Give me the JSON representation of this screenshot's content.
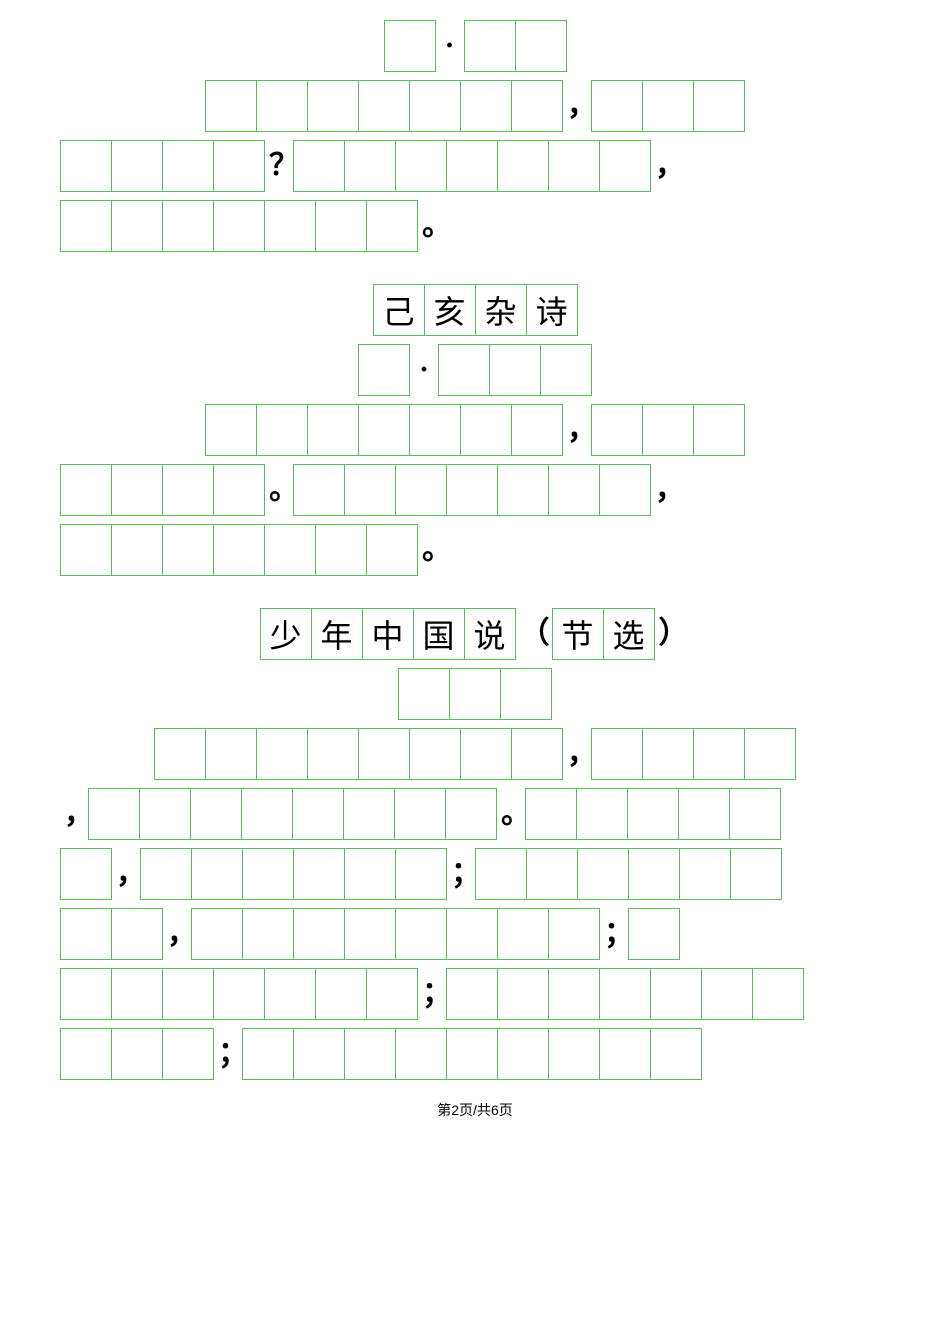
{
  "cellBorderColor": "#5cb85c",
  "cellSize": 52,
  "section1": {
    "rows": [
      {
        "align": "center",
        "segments": [
          {
            "type": "group",
            "cells": [
              ""
            ]
          },
          {
            "type": "punct",
            "text": "·"
          },
          {
            "type": "group",
            "cells": [
              "",
              ""
            ]
          }
        ]
      },
      {
        "align": "center",
        "segments": [
          {
            "type": "group",
            "cells": [
              "",
              "",
              "",
              "",
              "",
              "",
              ""
            ]
          },
          {
            "type": "punct",
            "text": "，"
          },
          {
            "type": "group",
            "cells": [
              "",
              "",
              ""
            ]
          }
        ]
      },
      {
        "align": "left",
        "segments": [
          {
            "type": "group",
            "cells": [
              "",
              "",
              "",
              ""
            ]
          },
          {
            "type": "punct",
            "text": "？"
          },
          {
            "type": "group",
            "cells": [
              "",
              "",
              "",
              "",
              "",
              "",
              ""
            ]
          },
          {
            "type": "punct",
            "text": "，"
          }
        ]
      },
      {
        "align": "left",
        "segments": [
          {
            "type": "group",
            "cells": [
              "",
              "",
              "",
              "",
              "",
              "",
              ""
            ]
          },
          {
            "type": "punct",
            "text": "。"
          }
        ]
      }
    ]
  },
  "section2": {
    "title": [
      "己",
      "亥",
      "杂",
      "诗"
    ],
    "rows": [
      {
        "align": "center",
        "segments": [
          {
            "type": "group",
            "cells": [
              ""
            ]
          },
          {
            "type": "punct",
            "text": "·"
          },
          {
            "type": "group",
            "cells": [
              "",
              "",
              ""
            ]
          }
        ]
      },
      {
        "align": "center",
        "segments": [
          {
            "type": "group",
            "cells": [
              "",
              "",
              "",
              "",
              "",
              "",
              ""
            ]
          },
          {
            "type": "punct",
            "text": "，"
          },
          {
            "type": "group",
            "cells": [
              "",
              "",
              ""
            ]
          }
        ]
      },
      {
        "align": "left",
        "segments": [
          {
            "type": "group",
            "cells": [
              "",
              "",
              "",
              ""
            ]
          },
          {
            "type": "punct",
            "text": "。"
          },
          {
            "type": "group",
            "cells": [
              "",
              "",
              "",
              "",
              "",
              "",
              ""
            ]
          },
          {
            "type": "punct",
            "text": "，"
          }
        ]
      },
      {
        "align": "left",
        "segments": [
          {
            "type": "group",
            "cells": [
              "",
              "",
              "",
              "",
              "",
              "",
              ""
            ]
          },
          {
            "type": "punct",
            "text": "。"
          }
        ]
      }
    ]
  },
  "section3": {
    "title": {
      "main": [
        "少",
        "年",
        "中",
        "国",
        "说"
      ],
      "lparen": "（",
      "sub": [
        "节",
        "选"
      ],
      "rparen": "）"
    },
    "rows": [
      {
        "align": "center",
        "segments": [
          {
            "type": "group",
            "cells": [
              "",
              "",
              ""
            ]
          }
        ]
      },
      {
        "align": "center",
        "segments": [
          {
            "type": "group",
            "cells": [
              "",
              "",
              "",
              "",
              "",
              "",
              "",
              ""
            ]
          },
          {
            "type": "punct",
            "text": "，"
          },
          {
            "type": "group",
            "cells": [
              "",
              "",
              "",
              ""
            ]
          }
        ]
      },
      {
        "align": "left",
        "segments": [
          {
            "type": "punct",
            "text": "，"
          },
          {
            "type": "group",
            "cells": [
              "",
              "",
              "",
              "",
              "",
              "",
              "",
              ""
            ]
          },
          {
            "type": "punct",
            "text": "。"
          },
          {
            "type": "group",
            "cells": [
              "",
              "",
              "",
              "",
              ""
            ]
          }
        ]
      },
      {
        "align": "left",
        "segments": [
          {
            "type": "group",
            "cells": [
              ""
            ]
          },
          {
            "type": "punct",
            "text": "，"
          },
          {
            "type": "group",
            "cells": [
              "",
              "",
              "",
              "",
              "",
              ""
            ]
          },
          {
            "type": "punct",
            "text": "；"
          },
          {
            "type": "group",
            "cells": [
              "",
              "",
              "",
              "",
              "",
              ""
            ]
          }
        ]
      },
      {
        "align": "left",
        "segments": [
          {
            "type": "group",
            "cells": [
              "",
              ""
            ]
          },
          {
            "type": "punct",
            "text": "，"
          },
          {
            "type": "group",
            "cells": [
              "",
              "",
              "",
              "",
              "",
              "",
              "",
              ""
            ]
          },
          {
            "type": "punct",
            "text": "；"
          },
          {
            "type": "group",
            "cells": [
              ""
            ]
          }
        ]
      },
      {
        "align": "left",
        "segments": [
          {
            "type": "group",
            "cells": [
              "",
              "",
              "",
              "",
              "",
              "",
              ""
            ]
          },
          {
            "type": "punct",
            "text": "；"
          },
          {
            "type": "group",
            "cells": [
              "",
              "",
              "",
              "",
              "",
              "",
              ""
            ]
          }
        ]
      },
      {
        "align": "left",
        "segments": [
          {
            "type": "group",
            "cells": [
              "",
              "",
              ""
            ]
          },
          {
            "type": "punct",
            "text": "；"
          },
          {
            "type": "group",
            "cells": [
              "",
              "",
              "",
              "",
              "",
              "",
              "",
              "",
              ""
            ]
          }
        ]
      }
    ]
  },
  "footer": {
    "prefix": "第",
    "current": "2",
    "mid": "页/共",
    "total": "6",
    "suffix": "页"
  }
}
